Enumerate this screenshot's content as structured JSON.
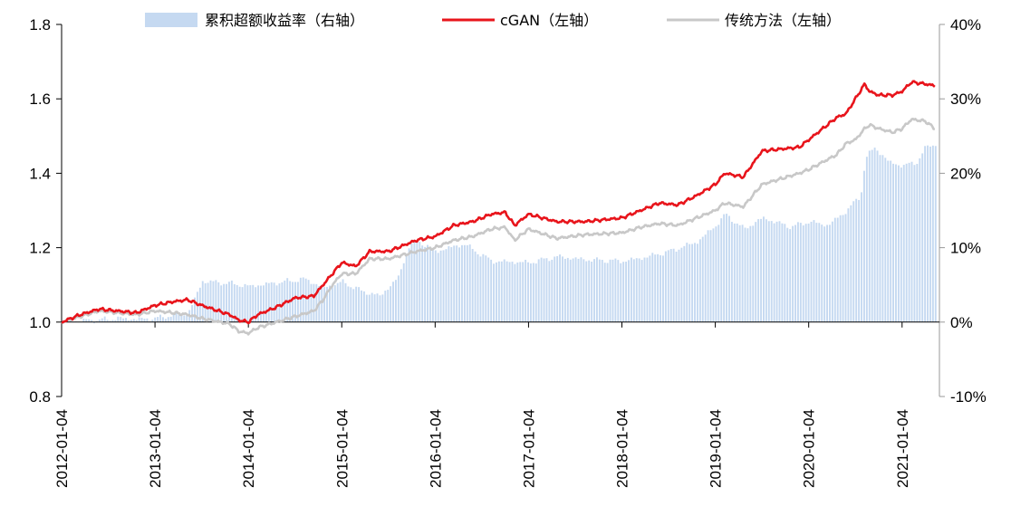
{
  "chart_data": {
    "type": "line",
    "title": "",
    "xlabel": "",
    "ylabel": "",
    "x_tick_labels": [
      "2012-01-04",
      "2013-01-04",
      "2014-01-04",
      "2015-01-04",
      "2016-01-04",
      "2017-01-04",
      "2018-01-04",
      "2019-01-04",
      "2020-01-04",
      "2021-01-04"
    ],
    "y_left": {
      "range": [
        0.8,
        1.8
      ],
      "ticks": [
        "0.8",
        "1.0",
        "1.2",
        "1.4",
        "1.6",
        "1.8"
      ]
    },
    "y_right": {
      "range": [
        -10,
        40
      ],
      "ticks": [
        "-10%",
        "0%",
        "10%",
        "20%",
        "30%",
        "40%"
      ]
    },
    "legend_position": "top",
    "colors": {
      "excess": "#c5d9f1",
      "cgan": "#e8141b",
      "traditional": "#c8c8c8"
    },
    "series": [
      {
        "name": "累积超额收益率（右轴）",
        "type": "bar",
        "axis": "right",
        "points": [
          [
            2012.0,
            0
          ],
          [
            2012.2,
            0.2
          ],
          [
            2012.4,
            0.3
          ],
          [
            2012.6,
            0.5
          ],
          [
            2012.8,
            0.4
          ],
          [
            2013.0,
            0.5
          ],
          [
            2013.2,
            1.0
          ],
          [
            2013.35,
            1.2
          ],
          [
            2013.5,
            5.5
          ],
          [
            2013.8,
            5.2
          ],
          [
            2014.0,
            4.8
          ],
          [
            2014.3,
            5.3
          ],
          [
            2014.6,
            5.8
          ],
          [
            2014.8,
            4.6
          ],
          [
            2015.0,
            5.4
          ],
          [
            2015.2,
            4.2
          ],
          [
            2015.4,
            3.5
          ],
          [
            2015.6,
            6.0
          ],
          [
            2015.7,
            10.0
          ],
          [
            2015.8,
            11.0
          ],
          [
            2016.0,
            9.5
          ],
          [
            2016.3,
            10.5
          ],
          [
            2016.6,
            8.2
          ],
          [
            2017.0,
            8.0
          ],
          [
            2017.3,
            8.8
          ],
          [
            2017.6,
            8.4
          ],
          [
            2018.0,
            8.2
          ],
          [
            2018.2,
            8.6
          ],
          [
            2018.5,
            9.5
          ],
          [
            2018.8,
            10.8
          ],
          [
            2019.0,
            13.0
          ],
          [
            2019.1,
            14.5
          ],
          [
            2019.3,
            12.5
          ],
          [
            2019.5,
            14.0
          ],
          [
            2019.8,
            12.8
          ],
          [
            2020.0,
            13.5
          ],
          [
            2020.2,
            13.0
          ],
          [
            2020.4,
            15.0
          ],
          [
            2020.55,
            17.0
          ],
          [
            2020.6,
            22.0
          ],
          [
            2020.7,
            23.5
          ],
          [
            2020.85,
            21.5
          ],
          [
            2021.0,
            21.0
          ],
          [
            2021.15,
            21.5
          ],
          [
            2021.25,
            23.5
          ],
          [
            2021.35,
            24.0
          ]
        ]
      },
      {
        "name": "cGAN（左轴）",
        "type": "line",
        "axis": "left",
        "points": [
          [
            2012.0,
            1.0
          ],
          [
            2012.2,
            1.02
          ],
          [
            2012.4,
            1.035
          ],
          [
            2012.6,
            1.03
          ],
          [
            2012.8,
            1.025
          ],
          [
            2013.0,
            1.045
          ],
          [
            2013.2,
            1.055
          ],
          [
            2013.35,
            1.06
          ],
          [
            2013.5,
            1.045
          ],
          [
            2013.8,
            1.02
          ],
          [
            2013.9,
            1.005
          ],
          [
            2014.0,
            1.0
          ],
          [
            2014.1,
            1.02
          ],
          [
            2014.3,
            1.04
          ],
          [
            2014.5,
            1.065
          ],
          [
            2014.7,
            1.07
          ],
          [
            2014.8,
            1.1
          ],
          [
            2014.9,
            1.13
          ],
          [
            2015.0,
            1.16
          ],
          [
            2015.15,
            1.15
          ],
          [
            2015.3,
            1.19
          ],
          [
            2015.5,
            1.19
          ],
          [
            2015.8,
            1.22
          ],
          [
            2016.0,
            1.23
          ],
          [
            2016.2,
            1.26
          ],
          [
            2016.4,
            1.27
          ],
          [
            2016.6,
            1.29
          ],
          [
            2016.75,
            1.295
          ],
          [
            2016.85,
            1.26
          ],
          [
            2017.0,
            1.29
          ],
          [
            2017.3,
            1.27
          ],
          [
            2017.6,
            1.27
          ],
          [
            2018.0,
            1.28
          ],
          [
            2018.2,
            1.3
          ],
          [
            2018.4,
            1.32
          ],
          [
            2018.6,
            1.315
          ],
          [
            2018.8,
            1.34
          ],
          [
            2019.0,
            1.37
          ],
          [
            2019.1,
            1.4
          ],
          [
            2019.3,
            1.39
          ],
          [
            2019.5,
            1.46
          ],
          [
            2019.7,
            1.465
          ],
          [
            2019.9,
            1.47
          ],
          [
            2020.0,
            1.49
          ],
          [
            2020.15,
            1.52
          ],
          [
            2020.3,
            1.55
          ],
          [
            2020.4,
            1.56
          ],
          [
            2020.5,
            1.6
          ],
          [
            2020.6,
            1.64
          ],
          [
            2020.65,
            1.62
          ],
          [
            2020.75,
            1.61
          ],
          [
            2020.9,
            1.61
          ],
          [
            2021.0,
            1.62
          ],
          [
            2021.1,
            1.645
          ],
          [
            2021.25,
            1.64
          ],
          [
            2021.35,
            1.635
          ]
        ]
      },
      {
        "name": "传统方法（左轴）",
        "type": "line",
        "axis": "left",
        "points": [
          [
            2012.0,
            1.0
          ],
          [
            2012.2,
            1.015
          ],
          [
            2012.4,
            1.03
          ],
          [
            2012.6,
            1.025
          ],
          [
            2012.8,
            1.02
          ],
          [
            2013.0,
            1.03
          ],
          [
            2013.2,
            1.025
          ],
          [
            2013.35,
            1.02
          ],
          [
            2013.5,
            1.01
          ],
          [
            2013.8,
            0.995
          ],
          [
            2013.9,
            0.975
          ],
          [
            2014.0,
            0.97
          ],
          [
            2014.1,
            0.985
          ],
          [
            2014.3,
            1.0
          ],
          [
            2014.5,
            1.015
          ],
          [
            2014.7,
            1.03
          ],
          [
            2014.8,
            1.06
          ],
          [
            2014.9,
            1.1
          ],
          [
            2015.0,
            1.13
          ],
          [
            2015.15,
            1.13
          ],
          [
            2015.3,
            1.17
          ],
          [
            2015.5,
            1.17
          ],
          [
            2015.8,
            1.19
          ],
          [
            2016.0,
            1.2
          ],
          [
            2016.2,
            1.22
          ],
          [
            2016.4,
            1.23
          ],
          [
            2016.6,
            1.25
          ],
          [
            2016.75,
            1.255
          ],
          [
            2016.85,
            1.22
          ],
          [
            2017.0,
            1.25
          ],
          [
            2017.3,
            1.225
          ],
          [
            2017.6,
            1.235
          ],
          [
            2018.0,
            1.24
          ],
          [
            2018.2,
            1.255
          ],
          [
            2018.4,
            1.265
          ],
          [
            2018.6,
            1.26
          ],
          [
            2018.8,
            1.28
          ],
          [
            2019.0,
            1.3
          ],
          [
            2019.1,
            1.32
          ],
          [
            2019.3,
            1.31
          ],
          [
            2019.5,
            1.37
          ],
          [
            2019.7,
            1.385
          ],
          [
            2019.9,
            1.4
          ],
          [
            2020.0,
            1.41
          ],
          [
            2020.15,
            1.43
          ],
          [
            2020.3,
            1.45
          ],
          [
            2020.4,
            1.48
          ],
          [
            2020.5,
            1.49
          ],
          [
            2020.6,
            1.52
          ],
          [
            2020.65,
            1.53
          ],
          [
            2020.75,
            1.52
          ],
          [
            2020.9,
            1.51
          ],
          [
            2021.0,
            1.52
          ],
          [
            2021.1,
            1.545
          ],
          [
            2021.25,
            1.54
          ],
          [
            2021.35,
            1.52
          ]
        ]
      }
    ]
  }
}
